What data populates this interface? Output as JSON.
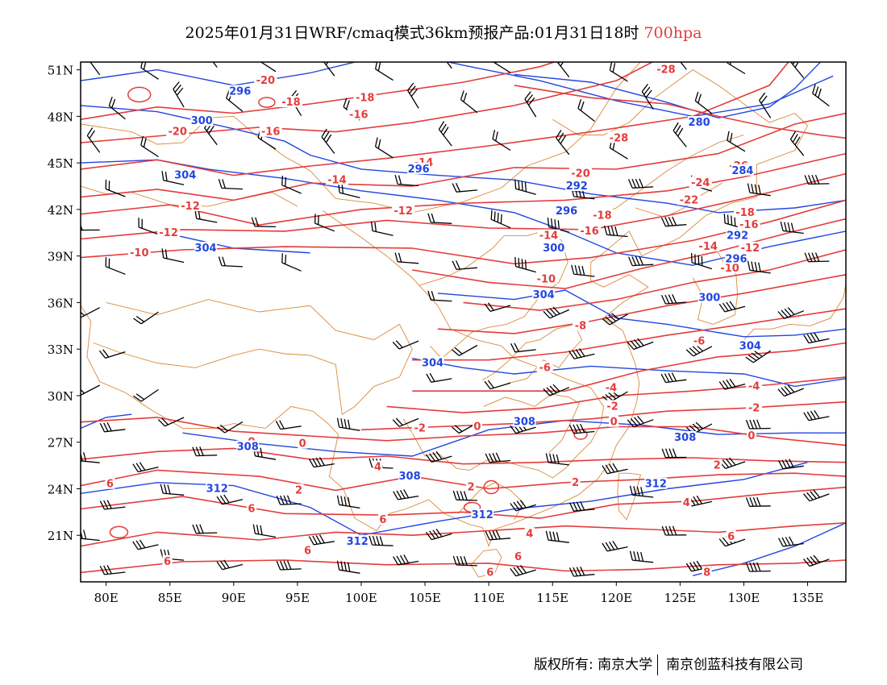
{
  "title": {
    "main": "2025年01月31日WRF/cmaq模式36km预报产品:01月31日18时",
    "level": "700hpa"
  },
  "map": {
    "lon_range": [
      78,
      138
    ],
    "lat_range": [
      18,
      51.5
    ],
    "lat_ticks": [
      "51N",
      "48N",
      "45N",
      "42N",
      "39N",
      "36N",
      "33N",
      "30N",
      "27N",
      "24N",
      "21N"
    ],
    "lat_tick_values": [
      51,
      48,
      45,
      42,
      39,
      36,
      33,
      30,
      27,
      24,
      21
    ],
    "lon_ticks": [
      "80E",
      "85E",
      "90E",
      "95E",
      "100E",
      "105E",
      "110E",
      "115E",
      "120E",
      "125E",
      "130E",
      "135E"
    ],
    "lon_tick_values": [
      80,
      85,
      90,
      95,
      100,
      105,
      110,
      115,
      120,
      125,
      130,
      135
    ],
    "temperature_labels": [
      {
        "text": "-20",
        "lon": 92.5,
        "lat": 50.3
      },
      {
        "text": "-18",
        "lon": 94.5,
        "lat": 48.9
      },
      {
        "text": "-18",
        "lon": 100.3,
        "lat": 49.2
      },
      {
        "text": "-16",
        "lon": 99.8,
        "lat": 48.1
      },
      {
        "text": "-16",
        "lon": 92.9,
        "lat": 47.0
      },
      {
        "text": "-20",
        "lon": 85.6,
        "lat": 47.0
      },
      {
        "text": "-28",
        "lon": 123.9,
        "lat": 51.0
      },
      {
        "text": "-28",
        "lon": 120.2,
        "lat": 46.6
      },
      {
        "text": "-14",
        "lon": 104.9,
        "lat": 45.0
      },
      {
        "text": "-14",
        "lon": 98.1,
        "lat": 43.9
      },
      {
        "text": "-20",
        "lon": 117.2,
        "lat": 44.3
      },
      {
        "text": "-26",
        "lon": 129.6,
        "lat": 44.8
      },
      {
        "text": "-24",
        "lon": 126.6,
        "lat": 43.7
      },
      {
        "text": "-22",
        "lon": 125.7,
        "lat": 42.6
      },
      {
        "text": "-12",
        "lon": 86.6,
        "lat": 42.2
      },
      {
        "text": "-12",
        "lon": 84.9,
        "lat": 40.5
      },
      {
        "text": "-12",
        "lon": 103.3,
        "lat": 41.9
      },
      {
        "text": "-18",
        "lon": 118.9,
        "lat": 41.6
      },
      {
        "text": "-16",
        "lon": 117.9,
        "lat": 40.6
      },
      {
        "text": "-14",
        "lon": 114.7,
        "lat": 40.3
      },
      {
        "text": "-10",
        "lon": 82.6,
        "lat": 39.2
      },
      {
        "text": "-18",
        "lon": 130.1,
        "lat": 41.8
      },
      {
        "text": "-16",
        "lon": 130.4,
        "lat": 41.0
      },
      {
        "text": "-14",
        "lon": 127.2,
        "lat": 39.6
      },
      {
        "text": "-12",
        "lon": 130.5,
        "lat": 39.5
      },
      {
        "text": "-10",
        "lon": 128.9,
        "lat": 38.2
      },
      {
        "text": "-10",
        "lon": 114.5,
        "lat": 37.5
      },
      {
        "text": "-8",
        "lon": 117.2,
        "lat": 34.5
      },
      {
        "text": "-6",
        "lon": 126.5,
        "lat": 33.5
      },
      {
        "text": "-6",
        "lon": 114.4,
        "lat": 31.8
      },
      {
        "text": "-4",
        "lon": 119.6,
        "lat": 30.5
      },
      {
        "text": "-4",
        "lon": 130.8,
        "lat": 30.6
      },
      {
        "text": "-2",
        "lon": 119.7,
        "lat": 29.3
      },
      {
        "text": "-2",
        "lon": 130.8,
        "lat": 29.2
      },
      {
        "text": "-2",
        "lon": 104.6,
        "lat": 27.9
      },
      {
        "text": "0",
        "lon": 109.1,
        "lat": 28.0
      },
      {
        "text": "0",
        "lon": 119.8,
        "lat": 28.3
      },
      {
        "text": "0",
        "lon": 130.6,
        "lat": 27.4
      },
      {
        "text": "0",
        "lon": 91.4,
        "lat": 27.0
      },
      {
        "text": "0",
        "lon": 95.4,
        "lat": 26.9
      },
      {
        "text": "2",
        "lon": 127.9,
        "lat": 25.5
      },
      {
        "text": "2",
        "lon": 108.6,
        "lat": 24.1
      },
      {
        "text": "2",
        "lon": 95.1,
        "lat": 23.9
      },
      {
        "text": "4",
        "lon": 101.3,
        "lat": 25.4
      },
      {
        "text": "2",
        "lon": 116.8,
        "lat": 24.4
      },
      {
        "text": "4",
        "lon": 125.5,
        "lat": 23.1
      },
      {
        "text": "6",
        "lon": 80.3,
        "lat": 24.3
      },
      {
        "text": "6",
        "lon": 91.4,
        "lat": 22.7
      },
      {
        "text": "6",
        "lon": 101.7,
        "lat": 22.0
      },
      {
        "text": "4",
        "lon": 113.2,
        "lat": 21.1
      },
      {
        "text": "6",
        "lon": 129.0,
        "lat": 20.9
      },
      {
        "text": "6",
        "lon": 84.8,
        "lat": 19.3
      },
      {
        "text": "6",
        "lon": 95.8,
        "lat": 20.0
      },
      {
        "text": "6",
        "lon": 112.3,
        "lat": 19.6
      },
      {
        "text": "6",
        "lon": 110.1,
        "lat": 18.6
      },
      {
        "text": "8",
        "lon": 127.1,
        "lat": 18.6
      }
    ],
    "height_labels": [
      {
        "text": "296",
        "lon": 90.5,
        "lat": 49.6
      },
      {
        "text": "300",
        "lon": 87.5,
        "lat": 47.7
      },
      {
        "text": "304",
        "lon": 86.2,
        "lat": 44.2
      },
      {
        "text": "304",
        "lon": 87.8,
        "lat": 39.5
      },
      {
        "text": "280",
        "lon": 126.5,
        "lat": 47.6
      },
      {
        "text": "284",
        "lon": 129.9,
        "lat": 44.5
      },
      {
        "text": "296",
        "lon": 104.5,
        "lat": 44.6
      },
      {
        "text": "292",
        "lon": 116.9,
        "lat": 43.5
      },
      {
        "text": "296",
        "lon": 116.1,
        "lat": 41.9
      },
      {
        "text": "300",
        "lon": 115.1,
        "lat": 39.5
      },
      {
        "text": "304",
        "lon": 114.3,
        "lat": 36.5
      },
      {
        "text": "300",
        "lon": 127.3,
        "lat": 36.3
      },
      {
        "text": "296",
        "lon": 129.4,
        "lat": 38.8
      },
      {
        "text": "292",
        "lon": 129.5,
        "lat": 40.3
      },
      {
        "text": "304",
        "lon": 130.5,
        "lat": 33.2
      },
      {
        "text": "304",
        "lon": 105.6,
        "lat": 32.1
      },
      {
        "text": "308",
        "lon": 112.8,
        "lat": 28.3
      },
      {
        "text": "308",
        "lon": 125.4,
        "lat": 27.3
      },
      {
        "text": "308",
        "lon": 91.1,
        "lat": 26.7
      },
      {
        "text": "308",
        "lon": 103.8,
        "lat": 24.8
      },
      {
        "text": "312",
        "lon": 88.7,
        "lat": 24.0
      },
      {
        "text": "312",
        "lon": 123.1,
        "lat": 24.3
      },
      {
        "text": "312",
        "lon": 109.5,
        "lat": 22.3
      },
      {
        "text": "312",
        "lon": 99.7,
        "lat": 20.6
      }
    ],
    "temperature_color": "#e43c3c",
    "height_color": "#2246e0",
    "border_color": "#d98a3a",
    "wind_color": "#000000"
  },
  "footer": {
    "copyright": "版权所有: 南京大学",
    "company": "南京创蓝科技有限公司"
  }
}
